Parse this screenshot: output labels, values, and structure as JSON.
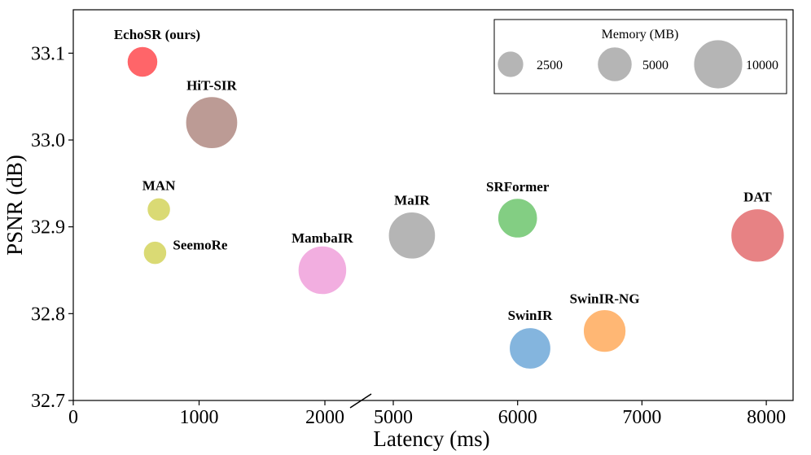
{
  "chart_data": {
    "type": "scatter",
    "title": "",
    "xlabel": "Latency (ms)",
    "ylabel": "PSNR (dB)",
    "axis_break": {
      "between": [
        2000,
        5000
      ]
    },
    "x_segments": [
      {
        "range": [
          0,
          2000
        ],
        "ticks": [
          0,
          1000,
          2000
        ]
      },
      {
        "range": [
          5000,
          8000
        ],
        "ticks": [
          5000,
          6000,
          7000,
          8000
        ]
      }
    ],
    "ylim": [
      32.7,
      33.15
    ],
    "y_ticks": [
      "32.7",
      "32.8",
      "32.9",
      "33.0",
      "33.1"
    ],
    "grid": false,
    "points": [
      {
        "label": "EchoSR (ours)",
        "latency": 550,
        "psnr": 33.09,
        "memory_mb": 1900,
        "color": "#ff4a4f"
      },
      {
        "label": "HiT-SIR",
        "latency": 1100,
        "psnr": 33.02,
        "memory_mb": 5500,
        "color": "#b08a82"
      },
      {
        "label": "MAN",
        "latency": 680,
        "psnr": 32.92,
        "memory_mb": 1100,
        "color": "#d4d35c"
      },
      {
        "label": "SeemoRe",
        "latency": 650,
        "psnr": 32.87,
        "memory_mb": 1100,
        "color": "#d4d35c"
      },
      {
        "label": "MambaIR",
        "latency": 1980,
        "psnr": 32.85,
        "memory_mb": 4800,
        "color": "#f0a0db"
      },
      {
        "label": "MaIR",
        "latency": 5150,
        "psnr": 32.89,
        "memory_mb": 4500,
        "color": "#a8a8a8"
      },
      {
        "label": "SRFormer",
        "latency": 6000,
        "psnr": 32.91,
        "memory_mb": 3200,
        "color": "#6dc56d"
      },
      {
        "label": "SwinIR",
        "latency": 6100,
        "psnr": 32.76,
        "memory_mb": 3500,
        "color": "#6fa8d8"
      },
      {
        "label": "SwinIR-NG",
        "latency": 6700,
        "psnr": 32.78,
        "memory_mb": 3700,
        "color": "#ffaa5c"
      },
      {
        "label": "DAT",
        "latency": 7930,
        "psnr": 32.89,
        "memory_mb": 5800,
        "color": "#e36c6f"
      }
    ],
    "legend": {
      "title": "Memory (MB)",
      "placement": "top-right",
      "entries": [
        {
          "label": "2500",
          "memory_mb": 2500
        },
        {
          "label": "5000",
          "memory_mb": 5000
        },
        {
          "label": "10000",
          "memory_mb": 10000
        }
      ],
      "color": "#a8a8a8"
    }
  }
}
